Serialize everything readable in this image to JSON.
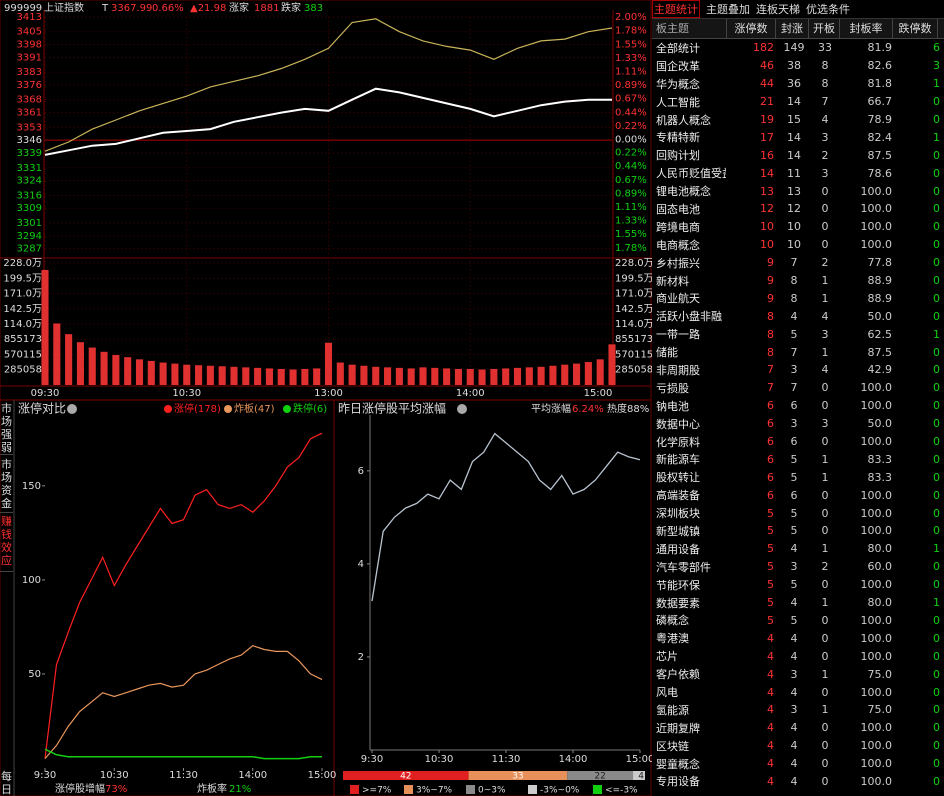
{
  "quote": {
    "code": "999999",
    "name": "上证指数",
    "t_label": "T",
    "price": "3367.99",
    "change_pct": "0.66%",
    "change": "▲21.98",
    "up_label": "涨家",
    "up_count": "1881",
    "down_label": "跌家",
    "down_count": "383"
  },
  "side_tabs": [
    "市场强弱",
    "市场资金",
    "赚钱效应",
    "每日"
  ],
  "chart_data": [
    {
      "type": "line",
      "x": [
        0,
        10,
        20,
        30,
        40,
        50,
        60,
        70,
        80,
        90,
        100,
        110,
        120,
        130,
        140,
        150,
        160,
        170,
        180,
        190,
        200,
        210,
        220,
        230,
        240
      ],
      "xlim": [
        0,
        240
      ],
      "xticks": [
        {
          "value": 0,
          "label": "09:30"
        },
        {
          "value": 60,
          "label": "10:30"
        },
        {
          "value": 120,
          "label": "13:00"
        },
        {
          "value": 180,
          "label": "14:00"
        },
        {
          "value": 240,
          "label": "15:00"
        }
      ],
      "ylim": [
        3283,
        3413
      ],
      "yticks": [
        3413,
        3405,
        3398,
        3391,
        3383,
        3376,
        3368,
        3361,
        3353,
        3346,
        3339,
        3331,
        3324,
        3316,
        3309,
        3301,
        3294,
        3287
      ],
      "y2lim": [
        -1.91,
        2.0
      ],
      "y2ticks": [
        {
          "value": 2.0,
          "label": "2.00%"
        },
        {
          "value": 1.78,
          "label": "1.78%"
        },
        {
          "value": 1.55,
          "label": "1.55%"
        },
        {
          "value": 1.33,
          "label": "1.33%"
        },
        {
          "value": 1.11,
          "label": "1.11%"
        },
        {
          "value": 0.89,
          "label": "0.89%"
        },
        {
          "value": 0.67,
          "label": "0.67%"
        },
        {
          "value": 0.44,
          "label": "0.44%"
        },
        {
          "value": 0.22,
          "label": "0.22%"
        },
        {
          "value": 0,
          "label": "0.00%"
        },
        {
          "value": -0.22,
          "label": "0.22%"
        },
        {
          "value": -0.44,
          "label": "0.44%"
        },
        {
          "value": -0.67,
          "label": "0.67%"
        },
        {
          "value": -0.89,
          "label": "0.89%"
        },
        {
          "value": -1.11,
          "label": "1.11%"
        },
        {
          "value": -1.33,
          "label": "1.33%"
        },
        {
          "value": -1.55,
          "label": "1.55%"
        },
        {
          "value": -1.78,
          "label": "1.78%"
        }
      ],
      "grid": true,
      "series": [
        {
          "color": "#c8b45a",
          "values": [
            3340,
            3345,
            3352,
            3357,
            3362,
            3366,
            3370,
            3375,
            3378,
            3381,
            3385,
            3390,
            3396,
            3410,
            3412,
            3405,
            3400,
            3397,
            3395,
            3390,
            3396,
            3400,
            3401,
            3405,
            3407
          ]
        },
        {
          "color": "#ffffff",
          "values": [
            3338,
            3340.5,
            3343,
            3344,
            3347,
            3350,
            3351,
            3352,
            3356,
            3358.5,
            3361,
            3363,
            3362,
            3368,
            3374,
            3372,
            3369,
            3366,
            3363,
            3359,
            3362,
            3365,
            3367,
            3368,
            3368
          ]
        }
      ]
    },
    {
      "type": "bar",
      "color": "#e03030",
      "x": [
        0,
        5,
        10,
        15,
        20,
        25,
        30,
        35,
        40,
        45,
        50,
        55,
        60,
        65,
        70,
        75,
        80,
        85,
        90,
        95,
        100,
        105,
        110,
        115,
        120,
        125,
        130,
        135,
        140,
        145,
        150,
        155,
        160,
        165,
        170,
        175,
        180,
        185,
        190,
        195,
        200,
        205,
        210,
        215,
        220,
        225,
        230,
        235,
        240
      ],
      "xlim": [
        0,
        240
      ],
      "values": [
        2150000,
        1150000,
        950000,
        800000,
        700000,
        620000,
        560000,
        520000,
        480000,
        450000,
        420000,
        400000,
        380000,
        370000,
        360000,
        350000,
        340000,
        330000,
        320000,
        310000,
        300000,
        290000,
        300000,
        310000,
        790000,
        420000,
        380000,
        360000,
        340000,
        330000,
        320000,
        310000,
        330000,
        320000,
        310000,
        300000,
        300000,
        290000,
        300000,
        310000,
        320000,
        330000,
        340000,
        360000,
        380000,
        400000,
        430000,
        480000,
        760000
      ],
      "ylim": [
        0,
        2280000
      ],
      "yticks": [
        {
          "value": 2280000,
          "label": "228.0万"
        },
        {
          "value": 1995000,
          "label": "199.5万"
        },
        {
          "value": 1710000,
          "label": "171.0万"
        },
        {
          "value": 1425000,
          "label": "142.5万"
        },
        {
          "value": 1140000,
          "label": "114.0万"
        },
        855173,
        570115,
        285058
      ],
      "grid": true
    },
    {
      "type": "line",
      "title": "涨停对比",
      "x": [
        0,
        10,
        20,
        30,
        40,
        50,
        60,
        70,
        80,
        90,
        100,
        110,
        120,
        130,
        140,
        150,
        160,
        170,
        180,
        190,
        200,
        210,
        220,
        230,
        240
      ],
      "xlim": [
        0,
        240
      ],
      "xticks": [
        {
          "value": 0,
          "label": "9:30"
        },
        {
          "value": 60,
          "label": "10:30"
        },
        {
          "value": 120,
          "label": "11:30"
        },
        {
          "value": 180,
          "label": "14:00"
        },
        {
          "value": 240,
          "label": "15:00"
        }
      ],
      "ylim": [
        0,
        185
      ],
      "yticks": [
        50,
        100,
        150
      ],
      "series": [
        {
          "name": "涨停(178)",
          "color": "#ff2020",
          "values": [
            5,
            55,
            72,
            88,
            100,
            112,
            97,
            108,
            118,
            128,
            138,
            130,
            132,
            145,
            148,
            140,
            138,
            140,
            136,
            142,
            150,
            160,
            165,
            175,
            178
          ]
        },
        {
          "name": "炸板(47)",
          "color": "#e8965a",
          "values": [
            5,
            12,
            22,
            30,
            35,
            40,
            38,
            40,
            42,
            44,
            45,
            43,
            44,
            50,
            52,
            55,
            58,
            60,
            65,
            63,
            62,
            62,
            57,
            50,
            47
          ]
        },
        {
          "name": "跌停(6)",
          "color": "#10d010",
          "values": [
            10,
            7,
            6,
            6,
            6,
            6,
            6,
            6,
            6,
            6,
            6,
            6,
            6,
            6,
            6,
            6,
            6,
            6,
            6,
            5,
            5,
            5,
            5,
            6,
            6
          ]
        }
      ],
      "footer": [
        {
          "label": "涨停股增幅",
          "value": "73%"
        },
        {
          "label": "炸板率",
          "value": "21%"
        }
      ]
    },
    {
      "type": "line",
      "title": "昨日涨停股平均涨幅",
      "avg_label": "平均涨幅",
      "avg_value": "6.24%",
      "heat": "热度88%",
      "x": [
        0,
        10,
        20,
        30,
        40,
        50,
        60,
        70,
        80,
        90,
        100,
        110,
        120,
        130,
        140,
        150,
        160,
        170,
        180,
        190,
        200,
        210,
        220,
        230,
        240
      ],
      "xlim": [
        0,
        240
      ],
      "xticks": [
        {
          "value": 0,
          "label": "9:30"
        },
        {
          "value": 60,
          "label": "10:30"
        },
        {
          "value": 120,
          "label": "11:30"
        },
        {
          "value": 180,
          "label": "14:00"
        },
        {
          "value": 240,
          "label": "15:00"
        }
      ],
      "ylim": [
        0,
        7.2
      ],
      "yticks": [
        2,
        4,
        6
      ],
      "series": [
        {
          "color": "#b8c4d0",
          "values": [
            3.2,
            4.7,
            5.0,
            5.2,
            5.3,
            5.5,
            5.4,
            5.8,
            5.6,
            6.2,
            6.4,
            6.8,
            6.6,
            6.4,
            6.2,
            5.8,
            5.6,
            5.9,
            5.5,
            5.6,
            5.8,
            6.1,
            6.4,
            6.3,
            6.24
          ]
        }
      ]
    },
    {
      "type": "stacked-bar",
      "values": [
        42,
        33,
        22,
        4
      ],
      "colors": [
        "#e02020",
        "#e8905a",
        "#8a8a8a",
        "#cccccc"
      ],
      "legend": [
        {
          "name": ">=7%",
          "color": "#e02020"
        },
        {
          "name": "3%~7%",
          "color": "#e8905a"
        },
        {
          "name": "0~3%",
          "color": "#8a8a8a"
        },
        {
          "name": "-3%~0%",
          "color": "#cccccc"
        },
        {
          "name": "<=-3%",
          "color": "#10d010"
        }
      ]
    }
  ],
  "table": {
    "tabs": [
      "主题统计",
      "主题叠加",
      "连板天梯",
      "优选条件"
    ],
    "columns": [
      "板主题",
      "涨停数",
      "封涨",
      "开板",
      "封板率",
      "跌停数"
    ],
    "rows": [
      [
        "全部统计",
        "182",
        "149",
        "33",
        "81.9",
        "6"
      ],
      [
        "国企改革",
        "46",
        "38",
        "8",
        "82.6",
        "3"
      ],
      [
        "华为概念",
        "44",
        "36",
        "8",
        "81.8",
        "1"
      ],
      [
        "人工智能",
        "21",
        "14",
        "7",
        "66.7",
        "0"
      ],
      [
        "机器人概念",
        "19",
        "15",
        "4",
        "78.9",
        "0"
      ],
      [
        "专精特新",
        "17",
        "14",
        "3",
        "82.4",
        "1"
      ],
      [
        "回购计划",
        "16",
        "14",
        "2",
        "87.5",
        "0"
      ],
      [
        "人民币贬值受益",
        "14",
        "11",
        "3",
        "78.6",
        "0"
      ],
      [
        "锂电池概念",
        "13",
        "13",
        "0",
        "100.0",
        "0"
      ],
      [
        "固态电池",
        "12",
        "12",
        "0",
        "100.0",
        "0"
      ],
      [
        "跨境电商",
        "10",
        "10",
        "0",
        "100.0",
        "0"
      ],
      [
        "电商概念",
        "10",
        "10",
        "0",
        "100.0",
        "0"
      ],
      [
        "乡村振兴",
        "9",
        "7",
        "2",
        "77.8",
        "0"
      ],
      [
        "新材料",
        "9",
        "8",
        "1",
        "88.9",
        "0"
      ],
      [
        "商业航天",
        "9",
        "8",
        "1",
        "88.9",
        "0"
      ],
      [
        "活跃小盘非融",
        "8",
        "4",
        "4",
        "50.0",
        "0"
      ],
      [
        "一带一路",
        "8",
        "5",
        "3",
        "62.5",
        "1"
      ],
      [
        "储能",
        "8",
        "7",
        "1",
        "87.5",
        "0"
      ],
      [
        "非周期股",
        "7",
        "3",
        "4",
        "42.9",
        "0"
      ],
      [
        "亏损股",
        "7",
        "7",
        "0",
        "100.0",
        "0"
      ],
      [
        "钠电池",
        "6",
        "6",
        "0",
        "100.0",
        "0"
      ],
      [
        "数据中心",
        "6",
        "3",
        "3",
        "50.0",
        "0"
      ],
      [
        "化学原料",
        "6",
        "6",
        "0",
        "100.0",
        "0"
      ],
      [
        "新能源车",
        "6",
        "5",
        "1",
        "83.3",
        "0"
      ],
      [
        "股权转让",
        "6",
        "5",
        "1",
        "83.3",
        "0"
      ],
      [
        "高端装备",
        "6",
        "6",
        "0",
        "100.0",
        "0"
      ],
      [
        "深圳板块",
        "5",
        "5",
        "0",
        "100.0",
        "0"
      ],
      [
        "新型城镇",
        "5",
        "5",
        "0",
        "100.0",
        "0"
      ],
      [
        "通用设备",
        "5",
        "4",
        "1",
        "80.0",
        "1"
      ],
      [
        "汽车零部件",
        "5",
        "3",
        "2",
        "60.0",
        "0"
      ],
      [
        "节能环保",
        "5",
        "5",
        "0",
        "100.0",
        "0"
      ],
      [
        "数据要素",
        "5",
        "4",
        "1",
        "80.0",
        "1"
      ],
      [
        "磷概念",
        "5",
        "5",
        "0",
        "100.0",
        "0"
      ],
      [
        "粤港澳",
        "4",
        "4",
        "0",
        "100.0",
        "0"
      ],
      [
        "芯片",
        "4",
        "4",
        "0",
        "100.0",
        "0"
      ],
      [
        "客户依赖",
        "4",
        "3",
        "1",
        "75.0",
        "0"
      ],
      [
        "风电",
        "4",
        "4",
        "0",
        "100.0",
        "0"
      ],
      [
        "氢能源",
        "4",
        "3",
        "1",
        "75.0",
        "0"
      ],
      [
        "近期复牌",
        "4",
        "4",
        "0",
        "100.0",
        "0"
      ],
      [
        "区块链",
        "4",
        "4",
        "0",
        "100.0",
        "0"
      ],
      [
        "婴童概念",
        "4",
        "4",
        "0",
        "100.0",
        "0"
      ],
      [
        "专用设备",
        "4",
        "4",
        "0",
        "100.0",
        "0"
      ]
    ]
  }
}
